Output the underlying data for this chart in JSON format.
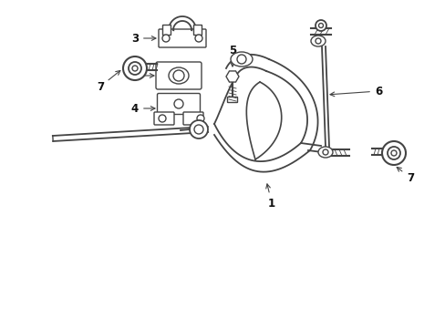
{
  "bg_color": "#ffffff",
  "line_color": "#444444",
  "line_width": 1.0,
  "label_color": "#111111",
  "fig_width": 4.89,
  "fig_height": 3.6,
  "dpi": 100
}
